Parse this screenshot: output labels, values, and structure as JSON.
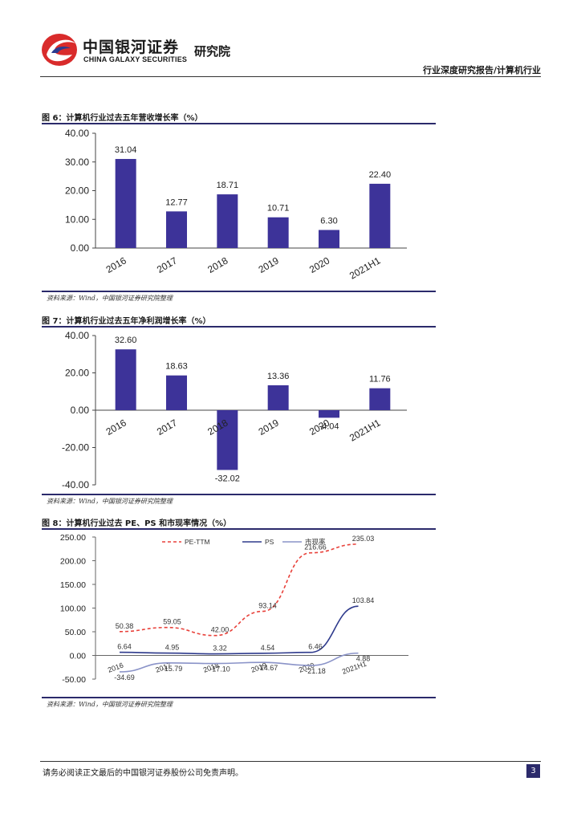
{
  "header": {
    "company_cn": "中国银河证券",
    "company_en": "CHINA GALAXY SECURITIES",
    "institute": "研究院",
    "report_type": "行业深度研究报告/计算机行业"
  },
  "figures": [
    {
      "title": "图 6：计算机行业过去五年营收增长率（%）",
      "source": "资料来源：Wind，中国银河证券研究院整理"
    },
    {
      "title": "图 7：计算机行业过去五年净利润增长率（%）",
      "source": "资料来源：Wind，中国银河证券研究院整理"
    },
    {
      "title": "图 8：计算机行业过去 PE、PS 和市现率情况（%）",
      "source": "资料来源：Wind，中国银河证券研究院整理"
    }
  ],
  "chart_data": [
    {
      "type": "bar",
      "categories": [
        "2016",
        "2017",
        "2018",
        "2019",
        "2020",
        "2021H1"
      ],
      "values": [
        31.04,
        12.77,
        18.71,
        10.71,
        6.3,
        22.4
      ],
      "value_labels": [
        "31.04",
        "12.77",
        "18.71",
        "10.71",
        "6.30",
        "22.40"
      ],
      "ylim": [
        0,
        40
      ],
      "yticks": [
        "40.00",
        "30.00",
        "20.00",
        "10.00",
        "0.00"
      ],
      "ytick_values": [
        40,
        30,
        20,
        10,
        0
      ],
      "color": "#3d3399",
      "grid": false
    },
    {
      "type": "bar",
      "categories": [
        "2016",
        "2017",
        "2018",
        "2019",
        "2020",
        "2021H1"
      ],
      "values": [
        32.6,
        18.63,
        -32.02,
        13.36,
        -4.04,
        11.76
      ],
      "value_labels": [
        "32.60",
        "18.63",
        "-32.02",
        "13.36",
        "-4.04",
        "11.76"
      ],
      "ylim": [
        -40,
        40
      ],
      "yticks": [
        "40.00",
        "20.00",
        "0.00",
        "-20.00",
        "-40.00"
      ],
      "ytick_values": [
        40,
        20,
        0,
        -20,
        -40
      ],
      "color": "#3d3399",
      "grid": false
    },
    {
      "type": "line",
      "categories": [
        "2016",
        "2017",
        "2018",
        "2019",
        "2020",
        "2021H1"
      ],
      "ylim": [
        -50,
        250
      ],
      "yticks": [
        "250.00",
        "200.00",
        "150.00",
        "100.00",
        "50.00",
        "0.00",
        "-50.00"
      ],
      "ytick_values": [
        250,
        200,
        150,
        100,
        50,
        0,
        -50
      ],
      "legend_position": "top",
      "grid": false,
      "series": [
        {
          "name": "PE-TTM",
          "values": [
            50.38,
            59.05,
            42.0,
            93.14,
            216.66,
            235.03
          ],
          "value_labels": [
            "50.38",
            "59.05",
            "42.00",
            "93.14",
            "216.66",
            "235.03"
          ],
          "color": "#e8413a",
          "dash": "dashed"
        },
        {
          "name": "PS",
          "values": [
            6.64,
            4.95,
            3.32,
            4.54,
            6.46,
            103.84
          ],
          "value_labels": [
            "6.64",
            "4.95",
            "3.32",
            "4.54",
            "6.46",
            "103.84"
          ],
          "color": "#2e3a8c",
          "dash": "solid"
        },
        {
          "name": "市现率",
          "values": [
            -34.69,
            -15.79,
            -17.1,
            -14.67,
            -21.18,
            4.88
          ],
          "value_labels": [
            "-34.69",
            "-15.79",
            "-17.10",
            "-14.67",
            "-21.18",
            "4.88"
          ],
          "color": "#8a93c8",
          "dash": "solid"
        }
      ]
    }
  ],
  "footer": {
    "disclaimer": "请务必阅读正文最后的中国银河证券股份公司免责声明。",
    "page_number": "3"
  }
}
